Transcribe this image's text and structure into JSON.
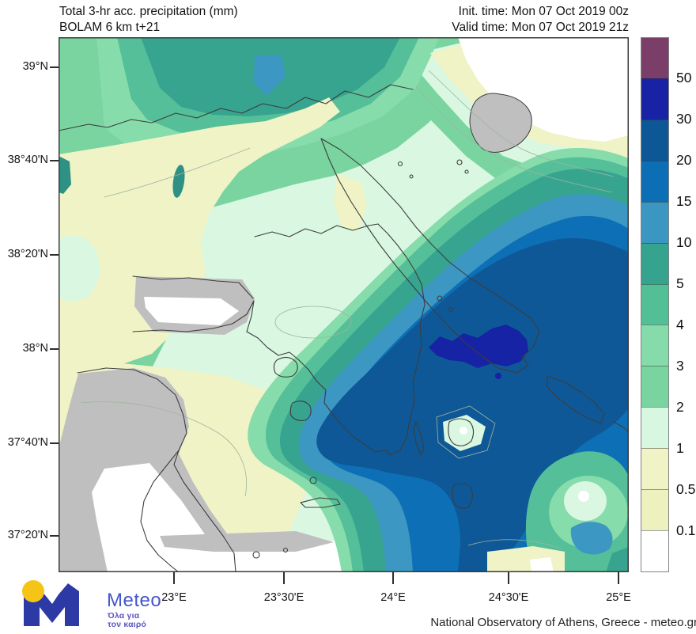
{
  "header": {
    "title_line1": "Total 3-hr acc. precipitation (mm)",
    "title_line2": "BOLAM 6 km t+21",
    "init_time": "Init. time: Mon 07 Oct 2019 00z",
    "valid_time": "Valid time: Mon 07 Oct 2019 21z"
  },
  "map": {
    "lat_ticks": [
      {
        "label": "39°N"
      },
      {
        "label": "38°40'N"
      },
      {
        "label": "38°20'N"
      },
      {
        "label": "38°N"
      },
      {
        "label": "37°40'N"
      },
      {
        "label": "37°20'N"
      }
    ],
    "lon_ticks": [
      {
        "label": "23°E"
      },
      {
        "label": "23°30'E"
      },
      {
        "label": "24°E"
      },
      {
        "label": "24°30'E"
      },
      {
        "label": "25°E"
      }
    ]
  },
  "scale": {
    "unit": "mm",
    "segments": [
      {
        "color": "#7B3E68",
        "label": "50"
      },
      {
        "color": "#1822A5",
        "label": "30"
      },
      {
        "color": "#0D5796",
        "label": "20"
      },
      {
        "color": "#0C6FB5",
        "label": "15"
      },
      {
        "color": "#3B97C2",
        "label": "10"
      },
      {
        "color": "#35A38E",
        "label": "5"
      },
      {
        "color": "#53BF97",
        "label": "4"
      },
      {
        "color": "#85DCAA",
        "label": "3"
      },
      {
        "color": "#79D4A0",
        "label": "2"
      },
      {
        "color": "#D8F7E0",
        "label": "1"
      },
      {
        "color": "#EFF3C6",
        "label": "0.5"
      },
      {
        "color": "#ECF1BE",
        "label": "0.1"
      },
      {
        "color": "#FFFFFF",
        "label": null
      }
    ]
  },
  "logo": {
    "name": "Meteo",
    "tagline_line1": "Όλα για",
    "tagline_line2": "τον καιρό",
    "m_color": "#2D3AA5",
    "dot_color": "#F6C417",
    "text_color": "#4356CB",
    "tagline_color": "#5C55C4"
  },
  "credit": "National Observatory of Athens, Greece - meteo.gr",
  "chart_data": {
    "type": "contour_map",
    "title": "Total 3-hr acc. precipitation (mm)",
    "model": "BOLAM 6 km t+21",
    "init_time": "Mon 07 Oct 2019 00z",
    "valid_time": "Mon 07 Oct 2019 21z",
    "lon_ticks": [
      "23°E",
      "23°30'E",
      "24°E",
      "24°30'E",
      "25°E"
    ],
    "lat_ticks": [
      "39°N",
      "38°40'N",
      "38°20'N",
      "38°N",
      "37°40'N",
      "37°20'N"
    ],
    "levels_mm": [
      0.1,
      0.5,
      1,
      2,
      3,
      4,
      5,
      10,
      15,
      20,
      30,
      50
    ],
    "observed_max_band_mm": "30-50",
    "legend_position": "right"
  }
}
